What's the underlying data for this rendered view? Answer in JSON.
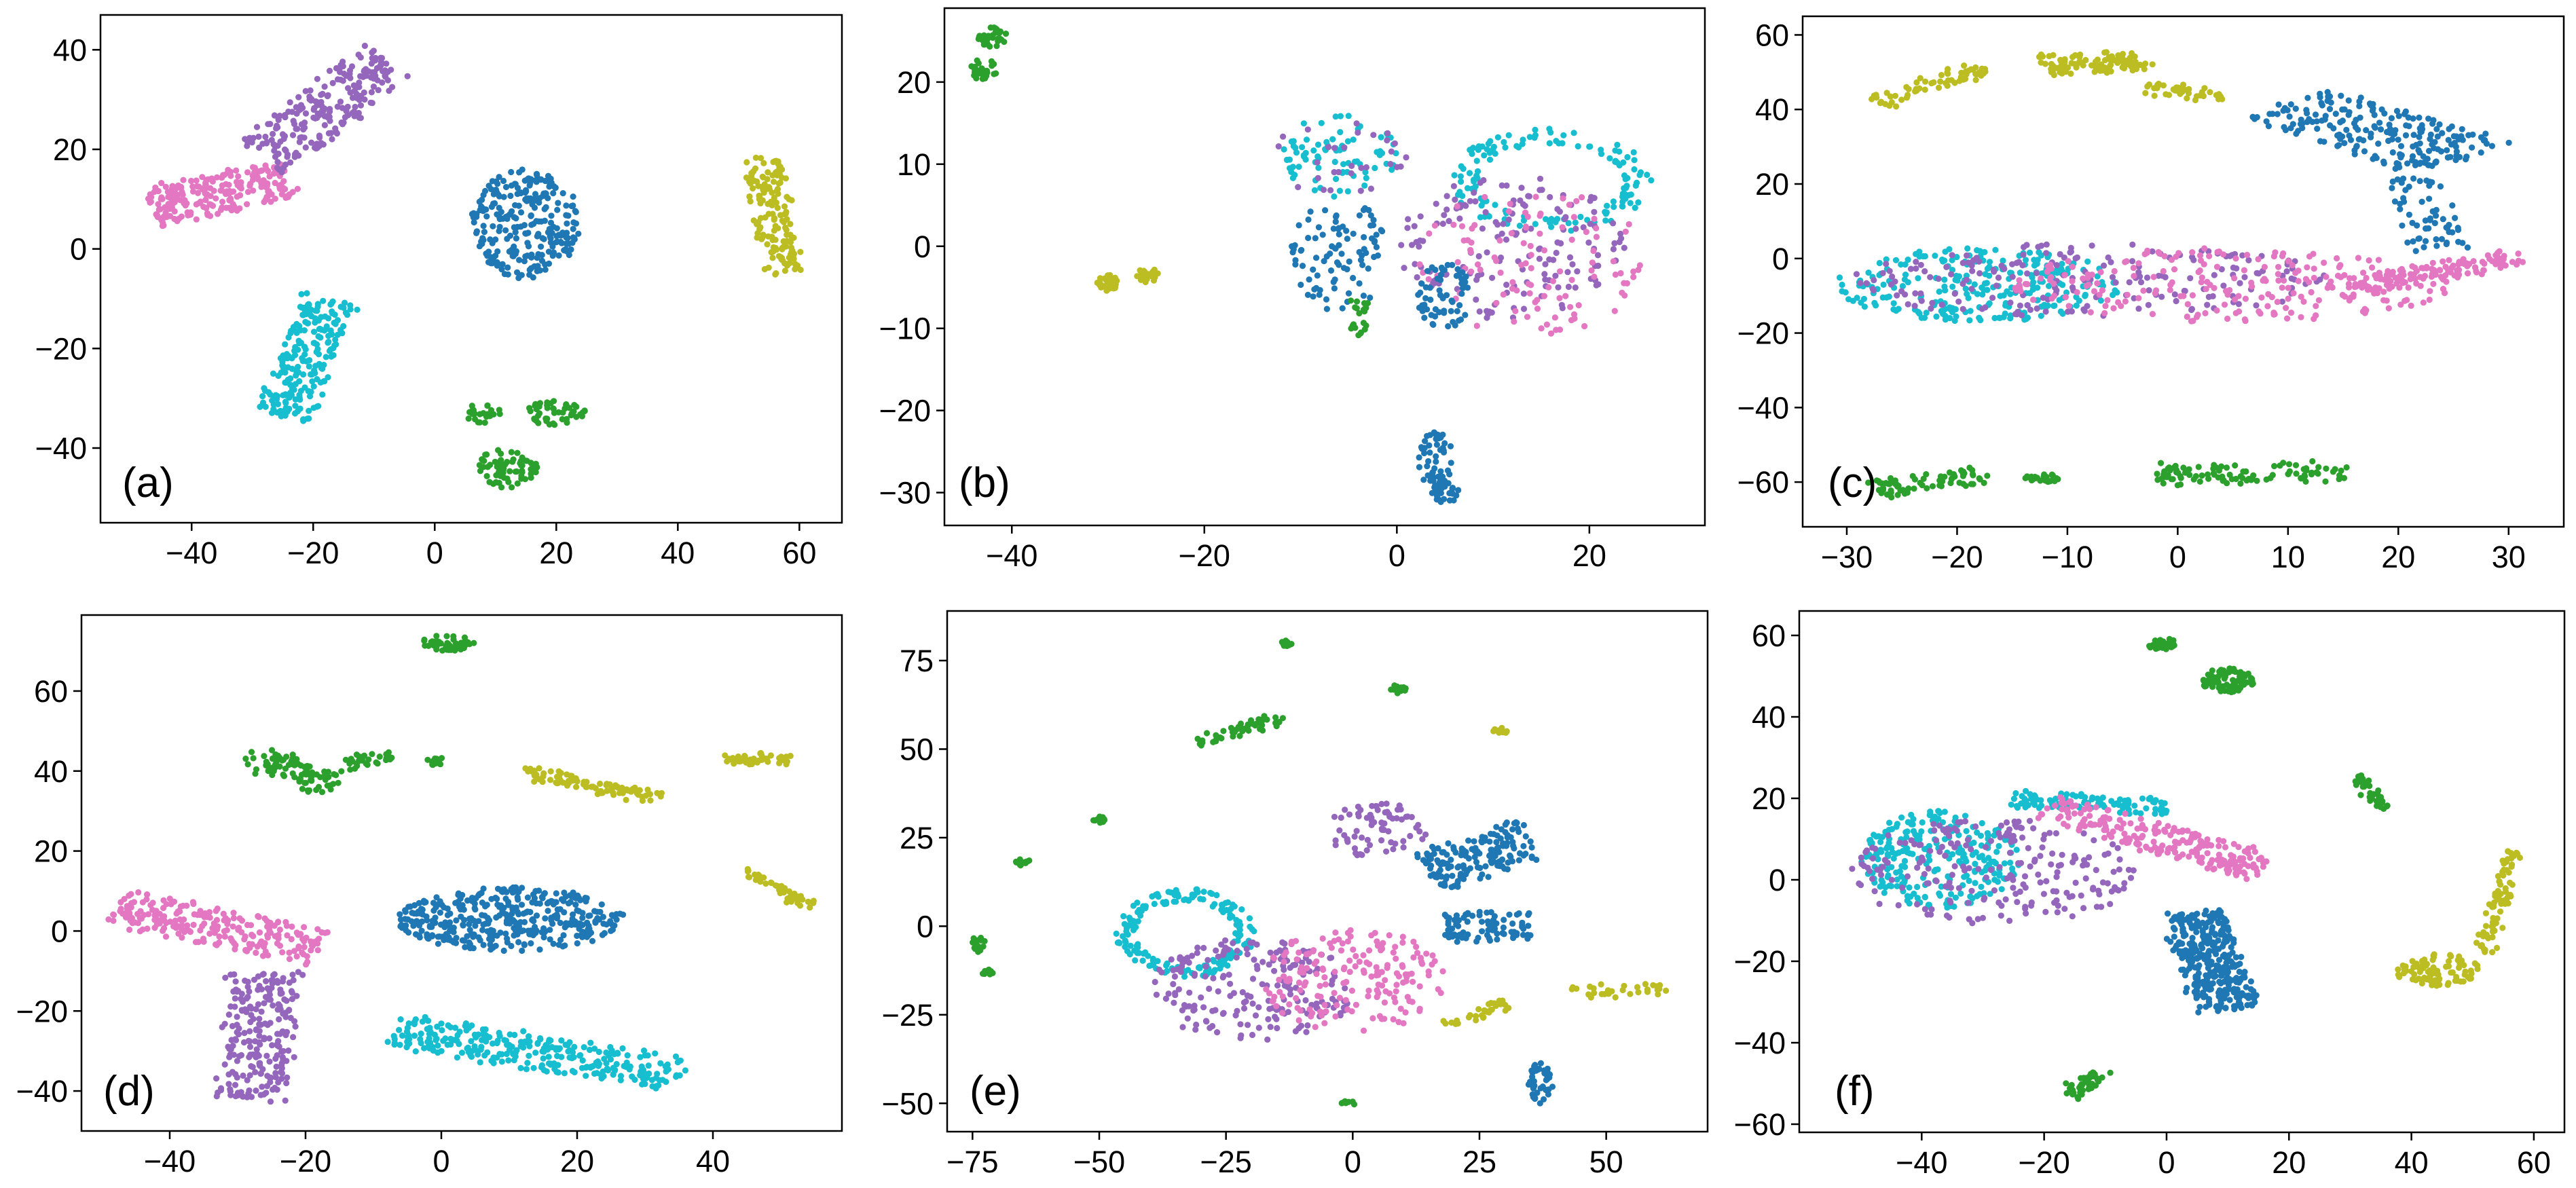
{
  "figure": {
    "colors": {
      "blue": "#1f77b4",
      "green": "#2ca02c",
      "purple": "#9467bd",
      "pink": "#e377c2",
      "olive": "#bcbd22",
      "cyan": "#17becf"
    }
  },
  "chart_data": [
    {
      "type": "scatter",
      "label": "(a)",
      "xlim": [
        -55,
        67
      ],
      "ylim": [
        -55,
        47
      ],
      "xticks": [
        -40,
        -20,
        0,
        20,
        40,
        60
      ],
      "yticks": [
        -40,
        -20,
        0,
        20,
        40
      ],
      "xtick_labels": [
        "−40",
        "−20",
        "0",
        "20",
        "40",
        "60"
      ],
      "ytick_labels": [
        "−40",
        "−20",
        "0",
        "20",
        "40"
      ],
      "clusters": [
        {
          "color": "pink",
          "shape": "band",
          "from": [
            -47,
            8
          ],
          "to": [
            -24,
            14
          ],
          "width": 8,
          "count": 230
        },
        {
          "color": "purple",
          "shape": "band",
          "from": [
            -28,
            18
          ],
          "to": [
            -8,
            38
          ],
          "width": 10,
          "count": 230
        },
        {
          "color": "cyan",
          "shape": "band",
          "from": [
            -25,
            -34
          ],
          "to": [
            -17,
            -10
          ],
          "width": 9,
          "count": 220
        },
        {
          "color": "blue",
          "shape": "blob",
          "cx": 15,
          "cy": 5,
          "rx": 9,
          "ry": 11,
          "count": 260
        },
        {
          "color": "olive",
          "shape": "band",
          "from": [
            54,
            18
          ],
          "to": [
            57,
            -5
          ],
          "width": 6,
          "count": 150
        },
        {
          "color": "green",
          "shape": "blob",
          "cx": 20,
          "cy": -33,
          "rx": 5,
          "ry": 2.5,
          "count": 50
        },
        {
          "color": "green",
          "shape": "blob",
          "cx": 12,
          "cy": -44,
          "rx": 5,
          "ry": 4,
          "count": 70
        },
        {
          "color": "green",
          "shape": "blob",
          "cx": 8,
          "cy": -33,
          "rx": 3,
          "ry": 2,
          "count": 25
        }
      ]
    },
    {
      "type": "scatter",
      "label": "(b)",
      "xlim": [
        -47,
        32
      ],
      "ylim": [
        -34,
        29
      ],
      "xticks": [
        -40,
        -20,
        0,
        20
      ],
      "yticks": [
        -30,
        -20,
        -10,
        0,
        10,
        20
      ],
      "xtick_labels": [
        "−40",
        "−20",
        "0",
        "20"
      ],
      "ytick_labels": [
        "−30",
        "−20",
        "−10",
        "0",
        "10",
        "20"
      ],
      "clusters": [
        {
          "color": "green",
          "shape": "blob",
          "cx": -42,
          "cy": 25.5,
          "rx": 1.5,
          "ry": 1.2,
          "count": 30
        },
        {
          "color": "green",
          "shape": "blob",
          "cx": -43,
          "cy": 21.5,
          "rx": 1.5,
          "ry": 1.3,
          "count": 30
        },
        {
          "color": "olive",
          "shape": "blob",
          "cx": -30,
          "cy": -4.5,
          "rx": 1.2,
          "ry": 1.0,
          "count": 30
        },
        {
          "color": "olive",
          "shape": "blob",
          "cx": -26,
          "cy": -3.5,
          "rx": 1.2,
          "ry": 1.0,
          "count": 25
        },
        {
          "color": "cyan",
          "shape": "blob",
          "cx": -6,
          "cy": 11,
          "rx": 6,
          "ry": 5,
          "count": 80
        },
        {
          "color": "purple",
          "shape": "blob",
          "cx": -6,
          "cy": 11,
          "rx": 7,
          "ry": 5,
          "count": 30
        },
        {
          "color": "blue",
          "shape": "blob",
          "cx": -6,
          "cy": -1,
          "rx": 5,
          "ry": 7,
          "count": 90
        },
        {
          "color": "green",
          "shape": "blob",
          "cx": -4,
          "cy": -7,
          "rx": 1,
          "ry": 1.2,
          "count": 12
        },
        {
          "color": "green",
          "shape": "blob",
          "cx": -4,
          "cy": -10,
          "rx": 1,
          "ry": 1,
          "count": 10
        },
        {
          "color": "cyan",
          "shape": "ring",
          "cx": 16,
          "cy": 8,
          "rx": 10,
          "ry": 6,
          "count": 140
        },
        {
          "color": "purple",
          "shape": "blob",
          "cx": 12,
          "cy": 0,
          "rx": 12,
          "ry": 9,
          "count": 160
        },
        {
          "color": "pink",
          "shape": "blob",
          "cx": 14,
          "cy": -2,
          "rx": 12,
          "ry": 9,
          "count": 110
        },
        {
          "color": "blue",
          "shape": "blob",
          "cx": 5,
          "cy": -6,
          "rx": 3,
          "ry": 4,
          "count": 60
        },
        {
          "color": "blue",
          "shape": "blob",
          "cx": 4,
          "cy": -26,
          "rx": 1.8,
          "ry": 3.5,
          "count": 55
        },
        {
          "color": "blue",
          "shape": "blob",
          "cx": 5,
          "cy": -30,
          "rx": 1.5,
          "ry": 1.2,
          "count": 30
        }
      ]
    },
    {
      "type": "scatter",
      "label": "(c)",
      "xlim": [
        -34,
        35
      ],
      "ylim": [
        -72,
        65
      ],
      "xticks": [
        -30,
        -20,
        -10,
        0,
        10,
        20,
        30
      ],
      "yticks": [
        -60,
        -40,
        -20,
        0,
        20,
        40,
        60
      ],
      "xtick_labels": [
        "−30",
        "−20",
        "−10",
        "0",
        "10",
        "20",
        "30"
      ],
      "ytick_labels": [
        "−60",
        "−40",
        "−20",
        "0",
        "20",
        "40",
        "60"
      ],
      "clusters": [
        {
          "color": "olive",
          "shape": "band",
          "from": [
            -27,
            42
          ],
          "to": [
            -18,
            51
          ],
          "width": 3,
          "count": 60
        },
        {
          "color": "olive",
          "shape": "band",
          "from": [
            -12,
            52
          ],
          "to": [
            -3,
            53
          ],
          "width": 5,
          "count": 100
        },
        {
          "color": "olive",
          "shape": "band",
          "from": [
            -3,
            46
          ],
          "to": [
            6,
            43
          ],
          "width": 3,
          "count": 40
        },
        {
          "color": "blue",
          "shape": "band",
          "from": [
            10,
            42
          ],
          "to": [
            26,
            27
          ],
          "width": 12,
          "count": 220
        },
        {
          "color": "blue",
          "shape": "band",
          "from": [
            21,
            22
          ],
          "to": [
            24,
            2
          ],
          "width": 5,
          "count": 60
        },
        {
          "color": "cyan",
          "shape": "blob",
          "cx": -18,
          "cy": -7,
          "rx": 13,
          "ry": 10,
          "count": 260
        },
        {
          "color": "purple",
          "shape": "blob",
          "cx": -8,
          "cy": -6,
          "rx": 22,
          "ry": 10,
          "count": 200
        },
        {
          "color": "pink",
          "shape": "blob",
          "cx": 5,
          "cy": -7,
          "rx": 20,
          "ry": 10,
          "count": 220
        },
        {
          "color": "pink",
          "shape": "band",
          "from": [
            15,
            -8
          ],
          "to": [
            31,
            0
          ],
          "width": 5,
          "count": 140
        },
        {
          "color": "green",
          "shape": "band",
          "from": [
            -28,
            -62
          ],
          "to": [
            -17,
            -58
          ],
          "width": 4,
          "count": 70
        },
        {
          "color": "green",
          "shape": "blob",
          "cx": -12,
          "cy": -59,
          "rx": 2,
          "ry": 1.2,
          "count": 25
        },
        {
          "color": "green",
          "shape": "band",
          "from": [
            -2,
            -58
          ],
          "to": [
            15,
            -57
          ],
          "width": 5,
          "count": 100
        }
      ]
    },
    {
      "type": "scatter",
      "label": "(d)",
      "xlim": [
        -53,
        59
      ],
      "ylim": [
        -50,
        79
      ],
      "xticks": [
        -40,
        -20,
        0,
        20,
        40
      ],
      "yticks": [
        -40,
        -20,
        0,
        20,
        40,
        60
      ],
      "xtick_labels": [
        "−40",
        "−20",
        "0",
        "20",
        "40"
      ],
      "ytick_labels": [
        "−40",
        "−20",
        "0",
        "20",
        "40",
        "60"
      ],
      "clusters": [
        {
          "color": "green",
          "shape": "blob",
          "cx": 1,
          "cy": 72,
          "rx": 4,
          "ry": 2,
          "count": 50
        },
        {
          "color": "green",
          "shape": "band",
          "from": [
            -28,
            44
          ],
          "to": [
            -16,
            36
          ],
          "width": 6,
          "count": 90
        },
        {
          "color": "green",
          "shape": "band",
          "from": [
            -14,
            42
          ],
          "to": [
            -7,
            44
          ],
          "width": 3,
          "count": 30
        },
        {
          "color": "green",
          "shape": "blob",
          "cx": -1,
          "cy": 42.5,
          "rx": 1.5,
          "ry": 1.2,
          "count": 15
        },
        {
          "color": "olive",
          "shape": "band",
          "from": [
            12,
            40
          ],
          "to": [
            32,
            33
          ],
          "width": 3,
          "count": 90
        },
        {
          "color": "olive",
          "shape": "band",
          "from": [
            42,
            43
          ],
          "to": [
            51,
            43
          ],
          "width": 2,
          "count": 50
        },
        {
          "color": "olive",
          "shape": "band",
          "from": [
            45,
            15
          ],
          "to": [
            54,
            6
          ],
          "width": 2,
          "count": 40
        },
        {
          "color": "pink",
          "shape": "band",
          "from": [
            -48,
            6
          ],
          "to": [
            -18,
            -4
          ],
          "width": 9,
          "count": 230
        },
        {
          "color": "purple",
          "shape": "band",
          "from": [
            -26,
            -10
          ],
          "to": [
            -28,
            -42
          ],
          "width": 10,
          "count": 230
        },
        {
          "color": "blue",
          "shape": "blob",
          "cx": 10,
          "cy": 3,
          "rx": 17,
          "ry": 8,
          "count": 380
        },
        {
          "color": "cyan",
          "shape": "band",
          "from": [
            -7,
            -25
          ],
          "to": [
            35,
            -36
          ],
          "width": 8,
          "count": 300
        }
      ]
    },
    {
      "type": "scatter",
      "label": "(e)",
      "xlim": [
        -80,
        70
      ],
      "ylim": [
        -58,
        89
      ],
      "xticks": [
        -75,
        -50,
        -25,
        0,
        25,
        50
      ],
      "yticks": [
        -50,
        -25,
        0,
        25,
        50,
        75
      ],
      "xtick_labels": [
        "−75",
        "−50",
        "−25",
        "0",
        "25",
        "50"
      ],
      "ytick_labels": [
        "−50",
        "−25",
        "0",
        "25",
        "50",
        "75"
      ],
      "clusters": [
        {
          "color": "green",
          "shape": "blob",
          "cx": -13,
          "cy": 80,
          "rx": 1.5,
          "ry": 1,
          "count": 12
        },
        {
          "color": "green",
          "shape": "blob",
          "cx": 9,
          "cy": 67,
          "rx": 1.5,
          "ry": 1.2,
          "count": 15
        },
        {
          "color": "green",
          "shape": "band",
          "from": [
            -31,
            52
          ],
          "to": [
            -14,
            59
          ],
          "width": 3,
          "count": 50
        },
        {
          "color": "green",
          "shape": "blob",
          "cx": -50,
          "cy": 30,
          "rx": 1.5,
          "ry": 1,
          "count": 12
        },
        {
          "color": "green",
          "shape": "blob",
          "cx": -65,
          "cy": 18,
          "rx": 1.5,
          "ry": 1,
          "count": 12
        },
        {
          "color": "green",
          "shape": "blob",
          "cx": -74,
          "cy": -5,
          "rx": 1.5,
          "ry": 2.5,
          "count": 15
        },
        {
          "color": "green",
          "shape": "blob",
          "cx": -72,
          "cy": -13,
          "rx": 1.2,
          "ry": 1,
          "count": 8
        },
        {
          "color": "olive",
          "shape": "blob",
          "cx": 29,
          "cy": 55,
          "rx": 1.5,
          "ry": 1,
          "count": 10
        },
        {
          "color": "cyan",
          "shape": "ring",
          "cx": -33,
          "cy": -2,
          "rx": 13,
          "ry": 12,
          "count": 180
        },
        {
          "color": "purple",
          "shape": "blob",
          "cx": -20,
          "cy": -18,
          "rx": 20,
          "ry": 15,
          "count": 200
        },
        {
          "color": "pink",
          "shape": "blob",
          "cx": 0,
          "cy": -15,
          "rx": 18,
          "ry": 15,
          "count": 180
        },
        {
          "color": "purple",
          "shape": "blob",
          "cx": 5,
          "cy": 27,
          "rx": 10,
          "ry": 8,
          "count": 70
        },
        {
          "color": "blue",
          "shape": "band",
          "from": [
            15,
            15
          ],
          "to": [
            35,
            25
          ],
          "width": 12,
          "count": 160
        },
        {
          "color": "blue",
          "shape": "band",
          "from": [
            18,
            0
          ],
          "to": [
            35,
            0
          ],
          "width": 8,
          "count": 80
        },
        {
          "color": "blue",
          "shape": "blob",
          "cx": 37,
          "cy": -44,
          "rx": 2.5,
          "ry": 6,
          "count": 40
        },
        {
          "color": "olive",
          "shape": "band",
          "from": [
            18,
            -28
          ],
          "to": [
            30,
            -22
          ],
          "width": 3,
          "count": 30
        },
        {
          "color": "olive",
          "shape": "band",
          "from": [
            42,
            -18
          ],
          "to": [
            63,
            -18
          ],
          "width": 3,
          "count": 30
        },
        {
          "color": "green",
          "shape": "blob",
          "cx": -1,
          "cy": -50,
          "rx": 1.5,
          "ry": 1,
          "count": 8
        }
      ]
    },
    {
      "type": "scatter",
      "label": "(f)",
      "xlim": [
        -60,
        65
      ],
      "ylim": [
        -62,
        66
      ],
      "xticks": [
        -40,
        -20,
        0,
        20,
        40,
        60
      ],
      "yticks": [
        -60,
        -40,
        -20,
        0,
        20,
        40,
        60
      ],
      "xtick_labels": [
        "−40",
        "−20",
        "0",
        "20",
        "40",
        "60"
      ],
      "ytick_labels": [
        "−60",
        "−40",
        "−20",
        "0",
        "20",
        "40",
        "60"
      ],
      "clusters": [
        {
          "color": "green",
          "shape": "blob",
          "cx": -1,
          "cy": 58,
          "rx": 2.5,
          "ry": 1.5,
          "count": 30
        },
        {
          "color": "green",
          "shape": "blob",
          "cx": 10,
          "cy": 49,
          "rx": 4.5,
          "ry": 3,
          "count": 90
        },
        {
          "color": "green",
          "shape": "band",
          "from": [
            31,
            25
          ],
          "to": [
            36,
            17
          ],
          "width": 2,
          "count": 40
        },
        {
          "color": "green",
          "shape": "band",
          "from": [
            -16,
            -53
          ],
          "to": [
            -10,
            -47
          ],
          "width": 3,
          "count": 45
        },
        {
          "color": "olive",
          "shape": "band",
          "from": [
            57,
            7
          ],
          "to": [
            52,
            -18
          ],
          "width": 3,
          "count": 80
        },
        {
          "color": "olive",
          "shape": "blob",
          "cx": 44,
          "cy": -22,
          "rx": 7,
          "ry": 4,
          "count": 90
        },
        {
          "color": "cyan",
          "shape": "blob",
          "cx": -37,
          "cy": 5,
          "rx": 13,
          "ry": 12,
          "count": 260
        },
        {
          "color": "purple",
          "shape": "blob",
          "cx": -28,
          "cy": 2,
          "rx": 24,
          "ry": 13,
          "count": 220
        },
        {
          "color": "cyan",
          "shape": "band",
          "from": [
            -25,
            20
          ],
          "to": [
            0,
            18
          ],
          "width": 4,
          "count": 100
        },
        {
          "color": "pink",
          "shape": "band",
          "from": [
            -20,
            18
          ],
          "to": [
            16,
            3
          ],
          "width": 7,
          "count": 220
        },
        {
          "color": "blue",
          "shape": "band",
          "from": [
            4,
            -8
          ],
          "to": [
            10,
            -32
          ],
          "width": 10,
          "count": 330
        }
      ]
    }
  ]
}
